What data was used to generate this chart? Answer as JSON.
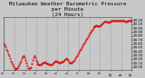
{
  "title": "Milwaukee Weather Barometric Pressure\nper Minute\n(24 Hours)",
  "title_fontsize": 4.2,
  "bg_color": "#c8c8c8",
  "plot_bg_color": "#c8c8c8",
  "line_color": "#dd0000",
  "grid_color": "#888888",
  "ylim": [
    28.92,
    30.28
  ],
  "yticks": [
    29.0,
    29.1,
    29.2,
    29.3,
    29.4,
    29.5,
    29.6,
    29.7,
    29.8,
    29.9,
    30.0,
    30.1,
    30.2
  ],
  "x_values": [
    0,
    1,
    2,
    3,
    4,
    5,
    6,
    7,
    8,
    9,
    10,
    11,
    12,
    13,
    14,
    15,
    16,
    17,
    18,
    19,
    20,
    21,
    22,
    23,
    24,
    25,
    26,
    27,
    28,
    29,
    30,
    31,
    32,
    33,
    34,
    35,
    36,
    37,
    38,
    39,
    40,
    41,
    42,
    43,
    44,
    45,
    46,
    47,
    48,
    49,
    50,
    51,
    52,
    53,
    54,
    55,
    56,
    57,
    58,
    59,
    60,
    61,
    62,
    63,
    64,
    65,
    66,
    67,
    68,
    69,
    70,
    71,
    72,
    73,
    74,
    75,
    76,
    77,
    78,
    79,
    80,
    81,
    82,
    83,
    84,
    85,
    86,
    87,
    88,
    89,
    90,
    91,
    92,
    93,
    94,
    95,
    96,
    97,
    98,
    99,
    100,
    101,
    102,
    103,
    104,
    105,
    106,
    107,
    108,
    109,
    110,
    111,
    112,
    113,
    114,
    115,
    116,
    117,
    118,
    119,
    120,
    121,
    122,
    123,
    124,
    125,
    126,
    127,
    128,
    129,
    130,
    131,
    132,
    133,
    134,
    135,
    136,
    137,
    138,
    139,
    140,
    141,
    142,
    143
  ],
  "y_values": [
    29.62,
    29.57,
    29.52,
    29.46,
    29.4,
    29.34,
    29.28,
    29.22,
    29.16,
    29.1,
    29.05,
    29.01,
    28.97,
    28.95,
    28.96,
    28.98,
    29.01,
    29.05,
    29.1,
    29.16,
    29.22,
    29.26,
    29.28,
    29.24,
    29.18,
    29.1,
    29.03,
    28.98,
    28.96,
    28.97,
    29.0,
    29.08,
    29.18,
    29.25,
    29.28,
    29.24,
    29.18,
    29.12,
    29.08,
    29.06,
    29.05,
    29.05,
    29.06,
    29.08,
    29.1,
    29.11,
    29.12,
    29.11,
    29.1,
    29.09,
    29.08,
    29.07,
    29.06,
    29.06,
    29.07,
    29.09,
    29.11,
    29.14,
    29.16,
    29.15,
    29.13,
    29.12,
    29.11,
    29.11,
    29.12,
    29.13,
    29.14,
    29.16,
    29.18,
    29.2,
    29.22,
    29.2,
    29.17,
    29.14,
    29.11,
    29.1,
    29.11,
    29.13,
    29.15,
    29.18,
    29.22,
    29.26,
    29.3,
    29.34,
    29.38,
    29.42,
    29.46,
    29.5,
    29.54,
    29.58,
    29.62,
    29.66,
    29.7,
    29.74,
    29.78,
    29.82,
    29.86,
    29.9,
    29.94,
    29.97,
    30.0,
    30.03,
    30.05,
    30.06,
    30.07,
    30.06,
    30.05,
    30.05,
    30.06,
    30.07,
    30.09,
    30.11,
    30.14,
    30.16,
    30.17,
    30.17,
    30.16,
    30.15,
    30.15,
    30.16,
    30.17,
    30.18,
    30.19,
    30.2,
    30.2,
    30.19,
    30.19,
    30.18,
    30.18,
    30.18,
    30.19,
    30.19,
    30.2,
    30.2,
    30.19,
    30.18,
    30.17,
    30.17,
    30.17,
    30.18,
    30.19,
    30.2,
    30.2,
    30.2
  ],
  "xtick_positions": [
    0,
    12,
    24,
    36,
    48,
    60,
    72,
    84,
    96,
    108,
    120,
    132,
    143
  ],
  "xtick_labels": [
    "0",
    "1",
    "2",
    "3",
    "4",
    "5",
    "6",
    "7",
    "8",
    "9",
    "10",
    "11",
    "12"
  ],
  "marker_size": 1.0,
  "tick_fontsize": 2.8,
  "title_color": "#000000"
}
